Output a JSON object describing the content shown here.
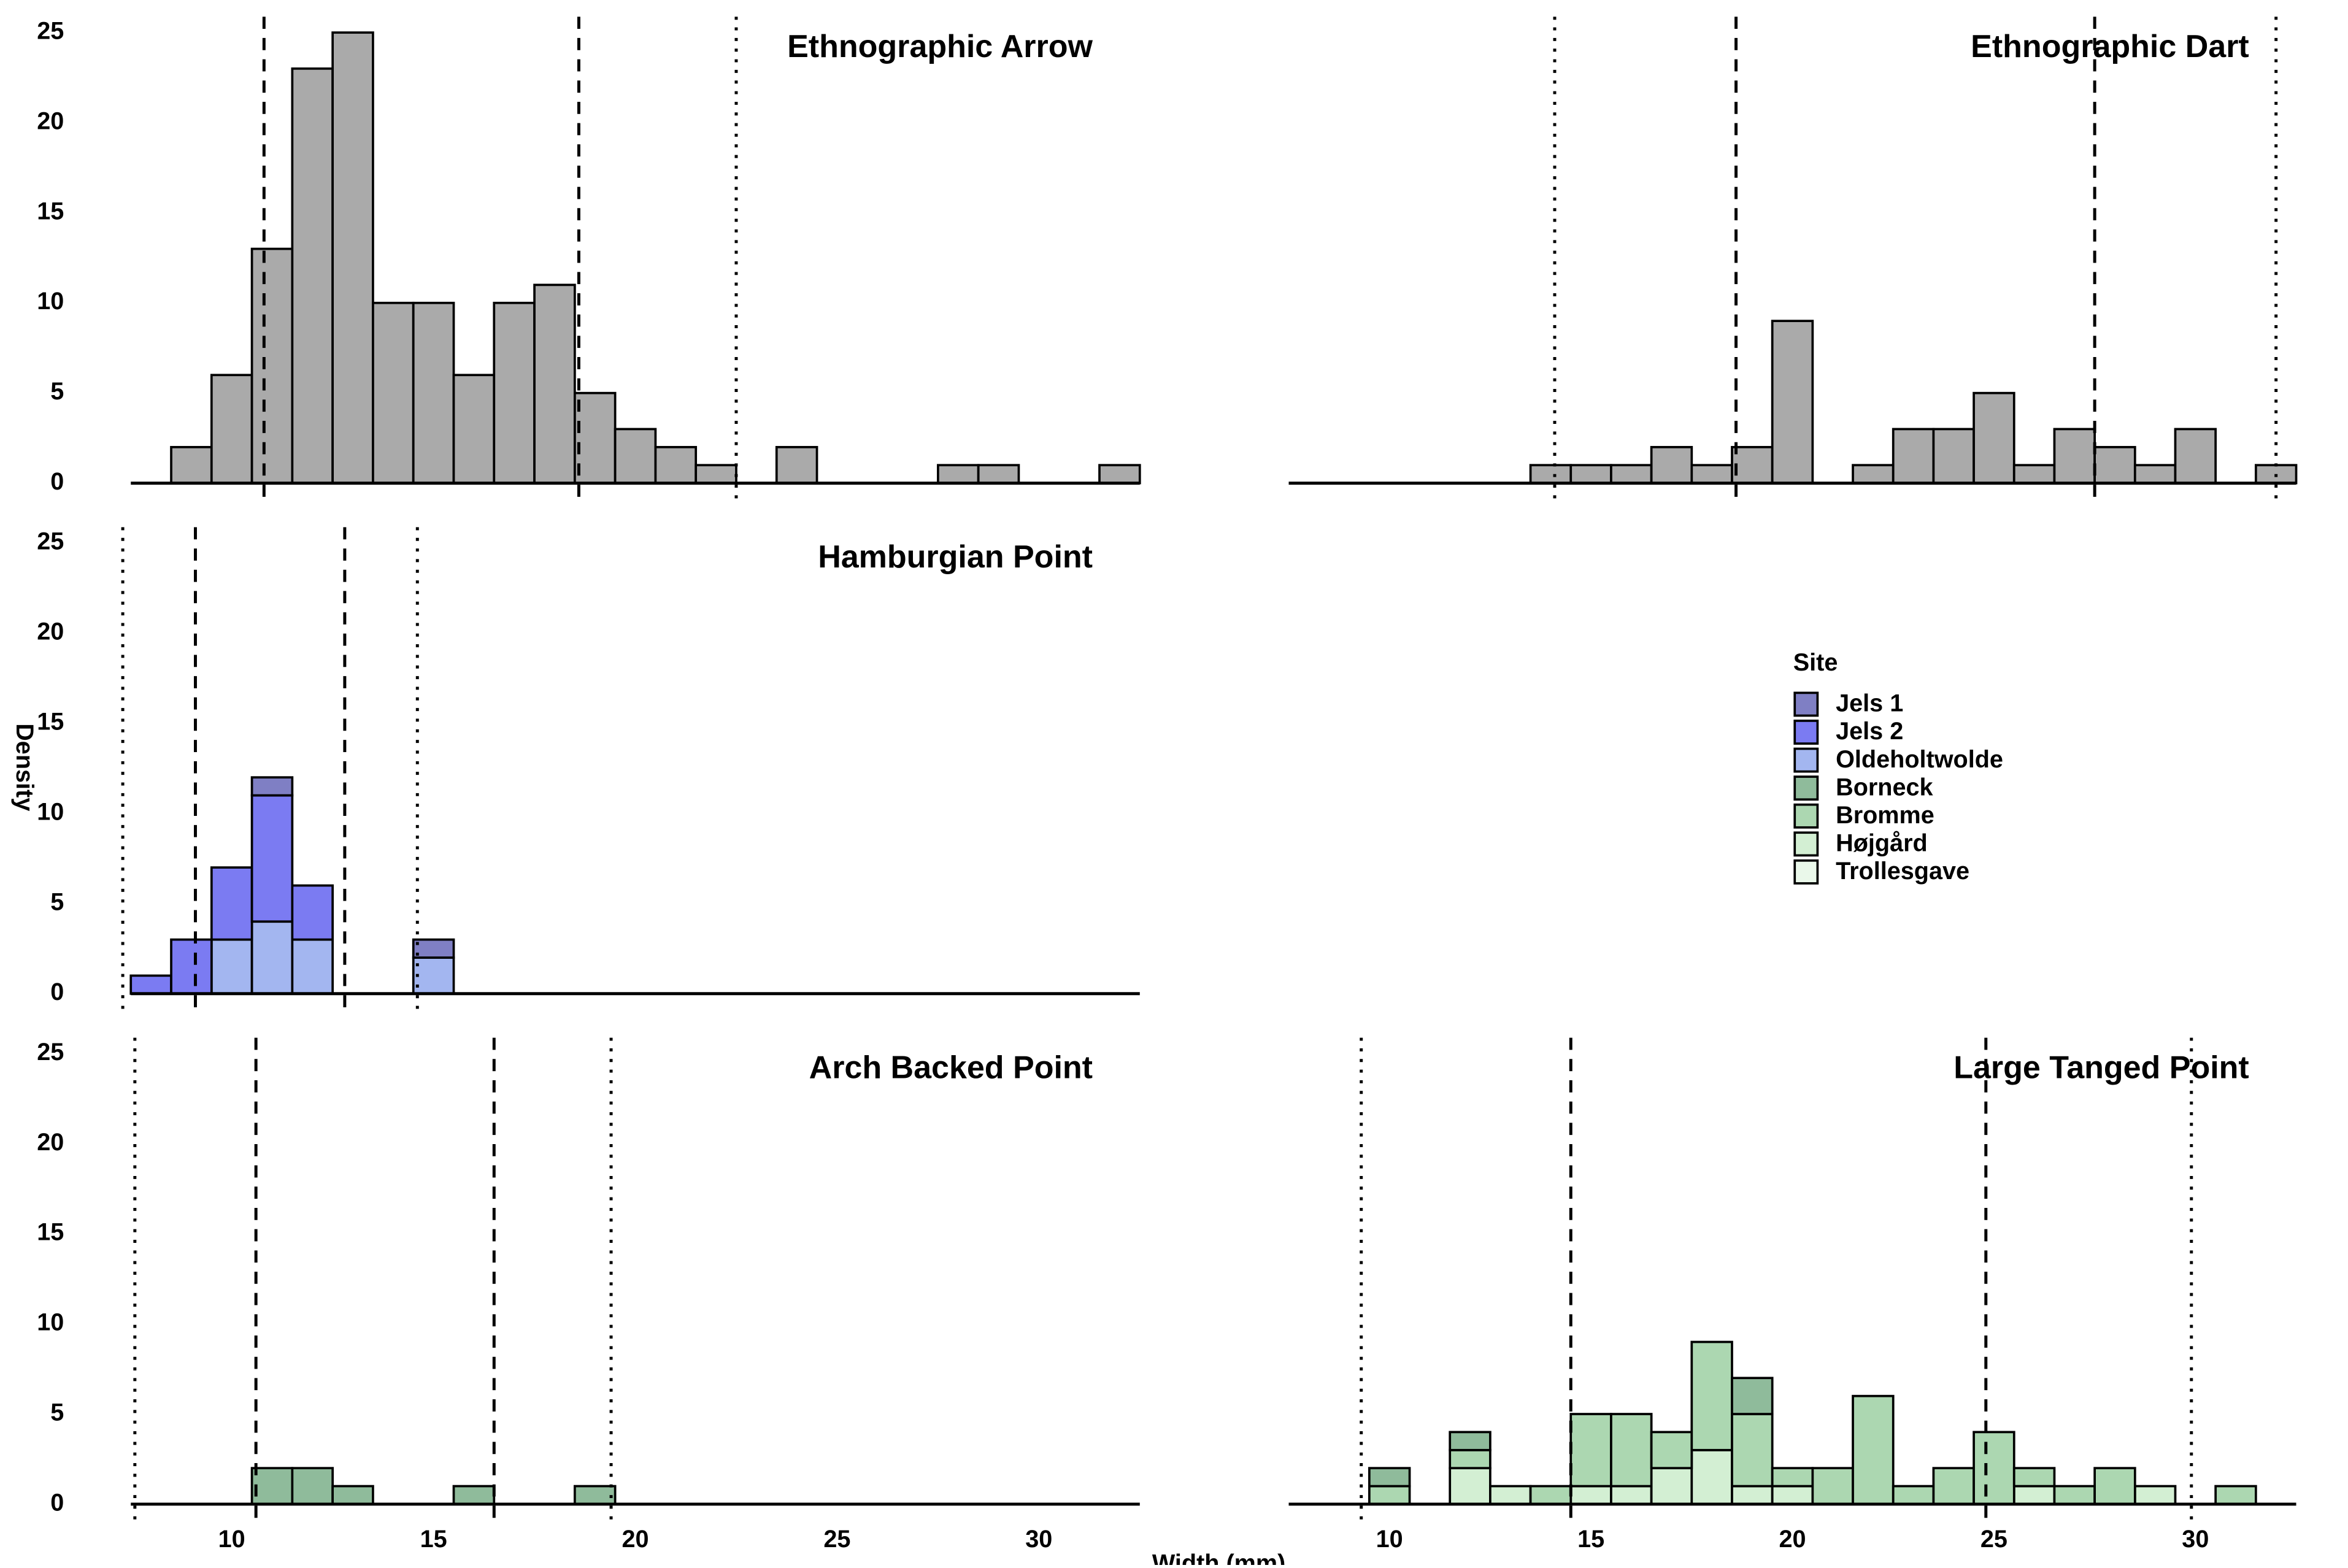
{
  "axis_labels": {
    "x": "Width (mm)",
    "y": "Density"
  },
  "legend": {
    "title": "Site",
    "items": [
      {
        "name": "Jels 1",
        "color": "#7f7fc4"
      },
      {
        "name": "Jels 2",
        "color": "#7b7bf2"
      },
      {
        "name": "Oldeholtwolde",
        "color": "#a3b6f0"
      },
      {
        "name": "Borneck",
        "color": "#8fbb9b"
      },
      {
        "name": "Bromme",
        "color": "#acd7b1"
      },
      {
        "name": "Højgård",
        "color": "#d3efd3"
      },
      {
        "name": "Trollesgave",
        "color": "#eaf8ea"
      }
    ]
  },
  "chart_data": [
    {
      "type": "histogram",
      "title": "Ethnographic Arrow",
      "color": "#aaaaaa",
      "bins": [
        7.5,
        8.5,
        9.5,
        10.5,
        11.5,
        12.5,
        13.5,
        14.5,
        15.5,
        16.5,
        17.5,
        18.5,
        19.5,
        20.5,
        21.5,
        22.5,
        23.5,
        24.5,
        25.5,
        26.5,
        27.5,
        28.5,
        29.5,
        30.5,
        31.5,
        32.5
      ],
      "values": [
        0,
        2,
        6,
        13,
        23,
        25,
        10,
        10,
        6,
        10,
        11,
        5,
        3,
        2,
        1,
        0,
        2,
        0,
        0,
        0,
        1,
        1,
        0,
        0,
        1
      ],
      "xlim": [
        7.5,
        32.5
      ],
      "ylim": [
        0,
        26.3
      ],
      "yticks": [
        0,
        5,
        10,
        15,
        20,
        25
      ],
      "dashed": [
        10.8,
        18.6
      ],
      "dotted": [
        22.5
      ]
    },
    {
      "type": "histogram",
      "title": "Ethnographic Dart",
      "color": "#aaaaaa",
      "bins": [
        7.5,
        8.5,
        9.5,
        10.5,
        11.5,
        12.5,
        13.5,
        14.5,
        15.5,
        16.5,
        17.5,
        18.5,
        19.5,
        20.5,
        21.5,
        22.5,
        23.5,
        24.5,
        25.5,
        26.5,
        27.5,
        28.5,
        29.5,
        30.5,
        31.5,
        32.5
      ],
      "values": [
        0,
        0,
        0,
        0,
        0,
        0,
        1,
        1,
        1,
        2,
        1,
        2,
        9,
        0,
        1,
        3,
        3,
        5,
        1,
        3,
        2,
        1,
        3,
        0,
        1
      ],
      "xlim": [
        7.5,
        32.5
      ],
      "ylim": [
        0,
        26.3
      ],
      "dashed": [
        18.6,
        27.5
      ],
      "dotted": [
        14.1,
        32.0
      ]
    },
    {
      "type": "histogram",
      "title": "Hamburgian Point",
      "bins": [
        7.5,
        8.5,
        9.5,
        10.5,
        11.5,
        12.5,
        13.5,
        14.5,
        15.5,
        16.5,
        17.5,
        18.5,
        19.5,
        20.5,
        21.5,
        22.5,
        23.5,
        24.5,
        25.5,
        26.5,
        27.5,
        28.5,
        29.5,
        30.5,
        31.5,
        32.5
      ],
      "series": [
        {
          "name": "Oldeholtwolde",
          "color": "#a3b6f0",
          "values": [
            0,
            0,
            3,
            4,
            3,
            0,
            0,
            2,
            0,
            0,
            0,
            0,
            0,
            0,
            0,
            0,
            0,
            0,
            0,
            0,
            0,
            0,
            0,
            0,
            0
          ]
        },
        {
          "name": "Jels 2",
          "color": "#7b7bf2",
          "values": [
            1,
            3,
            4,
            7,
            3,
            0,
            0,
            0,
            0,
            0,
            0,
            0,
            0,
            0,
            0,
            0,
            0,
            0,
            0,
            0,
            0,
            0,
            0,
            0,
            0
          ]
        },
        {
          "name": "Jels 1",
          "color": "#7f7fc4",
          "values": [
            0,
            0,
            0,
            1,
            0,
            0,
            0,
            1,
            0,
            0,
            0,
            0,
            0,
            0,
            0,
            0,
            0,
            0,
            0,
            0,
            0,
            0,
            0,
            0,
            0
          ]
        }
      ],
      "xlim": [
        7.5,
        32.5
      ],
      "ylim": [
        0,
        26.3
      ],
      "yticks": [
        0,
        5,
        10,
        15,
        20,
        25
      ],
      "dashed": [
        9.1,
        12.8
      ],
      "dotted": [
        7.3,
        14.6
      ]
    },
    {
      "type": "histogram",
      "title": "Arch Backed Point",
      "bins": [
        7.5,
        8.5,
        9.5,
        10.5,
        11.5,
        12.5,
        13.5,
        14.5,
        15.5,
        16.5,
        17.5,
        18.5,
        19.5,
        20.5,
        21.5,
        22.5,
        23.5,
        24.5,
        25.5,
        26.5,
        27.5,
        28.5,
        29.5,
        30.5,
        31.5,
        32.5
      ],
      "series": [
        {
          "name": "Borneck",
          "color": "#8fbb9b",
          "values": [
            0,
            0,
            0,
            2,
            2,
            1,
            0,
            0,
            1,
            0,
            0,
            1,
            0,
            0,
            0,
            0,
            0,
            0,
            0,
            0,
            0,
            0,
            0,
            0,
            0
          ]
        }
      ],
      "xlim": [
        7.5,
        32.5
      ],
      "ylim": [
        0,
        26.3
      ],
      "yticks": [
        0,
        5,
        10,
        15,
        20,
        25
      ],
      "xticks": [
        10,
        15,
        20,
        25,
        30
      ],
      "dashed": [
        10.6,
        16.5
      ],
      "dotted": [
        7.6,
        19.4
      ]
    },
    {
      "type": "histogram",
      "title": "Large Tanged Point",
      "bins": [
        7.5,
        8.5,
        9.5,
        10.5,
        11.5,
        12.5,
        13.5,
        14.5,
        15.5,
        16.5,
        17.5,
        18.5,
        19.5,
        20.5,
        21.5,
        22.5,
        23.5,
        24.5,
        25.5,
        26.5,
        27.5,
        28.5,
        29.5,
        30.5,
        31.5,
        32.5
      ],
      "series": [
        {
          "name": "Højgård",
          "color": "#d3efd3",
          "values": [
            0,
            0,
            0,
            0,
            2,
            1,
            0,
            1,
            1,
            2,
            3,
            1,
            1,
            0,
            0,
            0,
            0,
            0,
            1,
            0,
            0,
            1,
            0,
            0,
            0
          ]
        },
        {
          "name": "Bromme",
          "color": "#acd7b1",
          "values": [
            0,
            0,
            1,
            0,
            1,
            0,
            1,
            4,
            4,
            2,
            6,
            4,
            1,
            2,
            6,
            1,
            2,
            4,
            1,
            1,
            2,
            0,
            0,
            1,
            0
          ]
        },
        {
          "name": "Borneck",
          "color": "#8fbb9b",
          "values": [
            0,
            0,
            1,
            0,
            1,
            0,
            0,
            0,
            0,
            0,
            0,
            2,
            0,
            0,
            0,
            0,
            0,
            0,
            0,
            0,
            0,
            0,
            0,
            0,
            0
          ]
        }
      ],
      "xlim": [
        7.5,
        32.5
      ],
      "ylim": [
        0,
        26.3
      ],
      "xticks": [
        10,
        15,
        20,
        25,
        30
      ],
      "dashed": [
        14.5,
        24.8
      ],
      "dotted": [
        9.3,
        29.9
      ]
    }
  ]
}
